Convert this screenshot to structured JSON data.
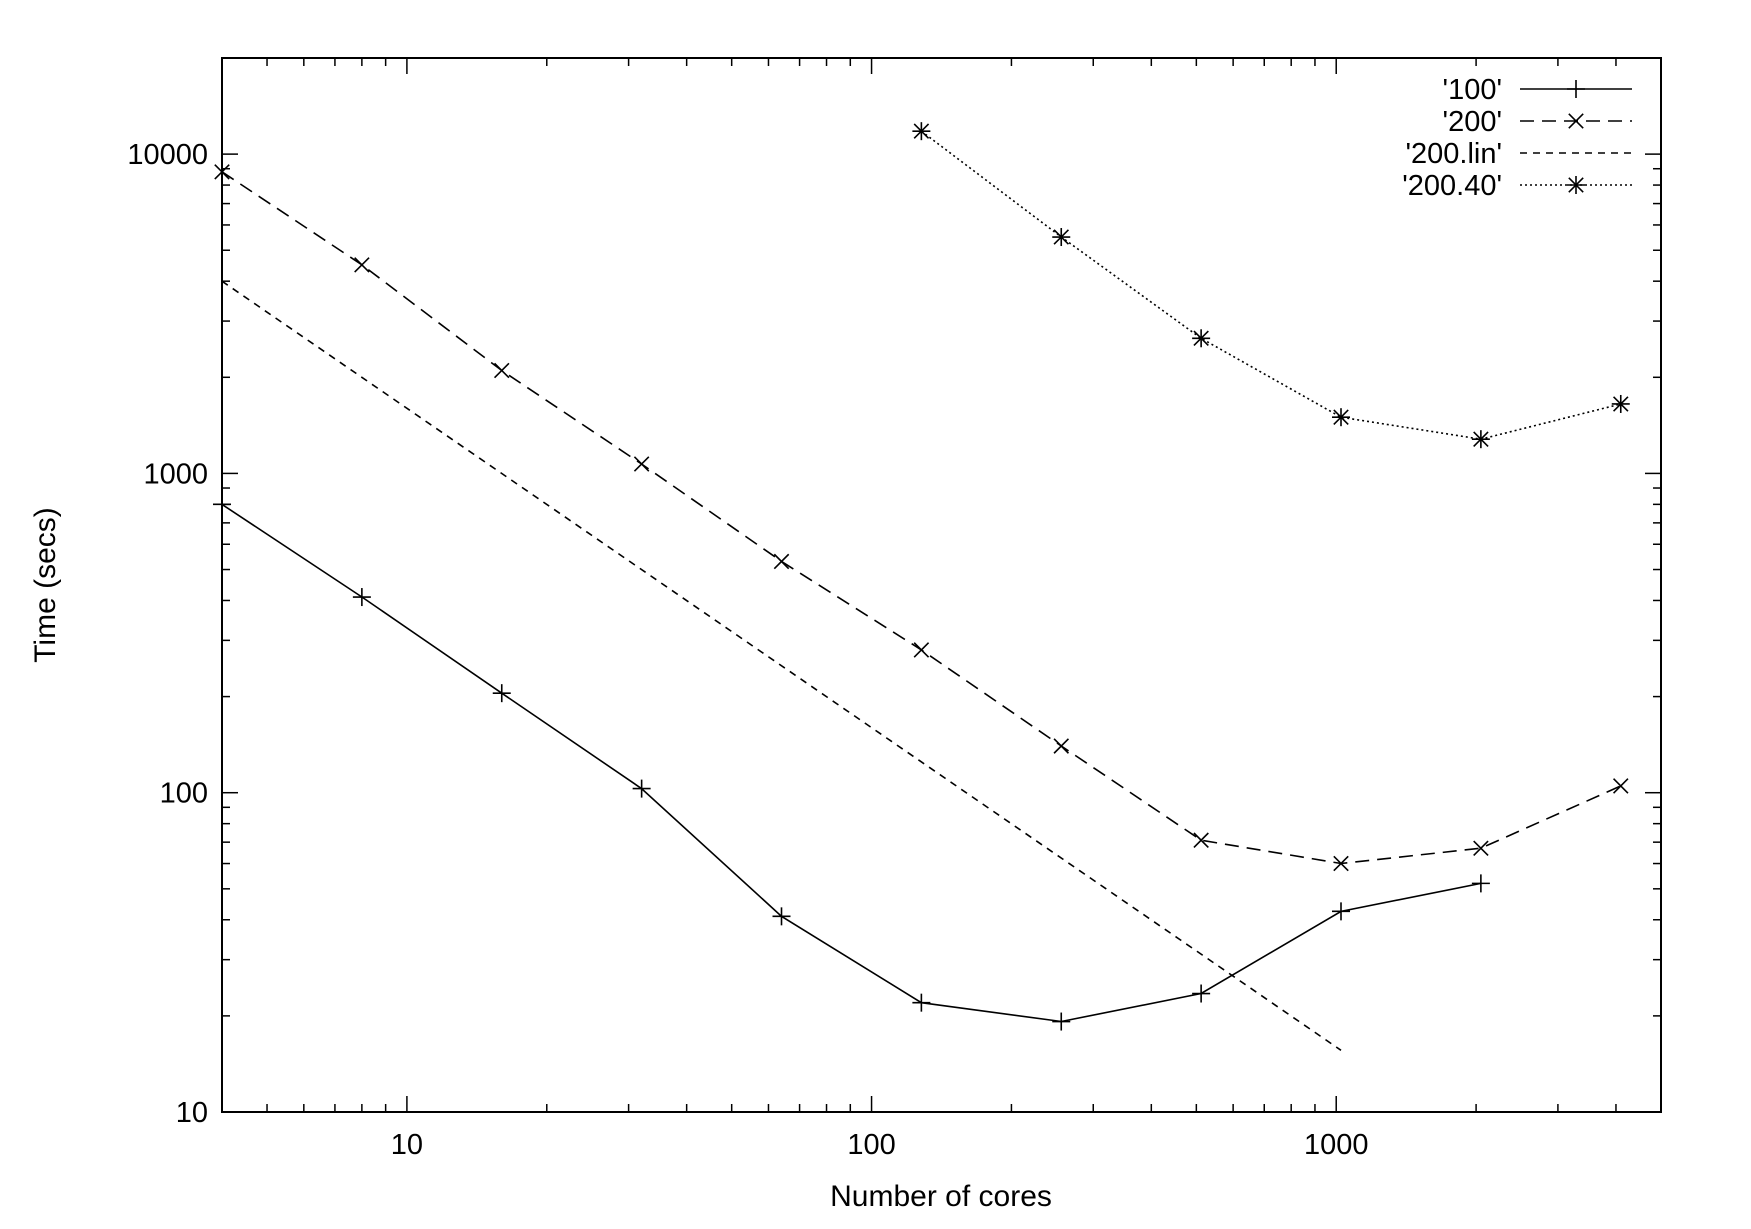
{
  "chart_data": {
    "type": "line",
    "title": "",
    "xlabel": "Number of cores",
    "ylabel": "Time (secs)",
    "x_scale": "log",
    "y_scale": "log",
    "xlim": [
      4,
      5000
    ],
    "ylim": [
      10,
      20000
    ],
    "x_ticks": [
      10,
      100,
      1000
    ],
    "x_tick_labels": [
      "10",
      "100",
      "1000"
    ],
    "y_ticks": [
      10,
      100,
      1000,
      10000
    ],
    "y_tick_labels": [
      "10",
      "100",
      "1000",
      "10000"
    ],
    "grid": false,
    "legend_position": "top-right",
    "series": [
      {
        "name": "'100'",
        "style": "solid",
        "marker": "plus",
        "x": [
          4,
          8,
          16,
          32,
          64,
          128,
          256,
          512,
          1024,
          2048
        ],
        "y": [
          800,
          410,
          205,
          103,
          41,
          22,
          19.2,
          23.5,
          42.5,
          52
        ]
      },
      {
        "name": "'200'",
        "style": "dashed",
        "marker": "cross",
        "x": [
          4,
          8,
          16,
          32,
          64,
          128,
          256,
          512,
          1024,
          2048,
          4096
        ],
        "y": [
          8800,
          4500,
          2100,
          1070,
          530,
          280,
          140,
          71,
          60,
          67,
          105
        ]
      },
      {
        "name": "'200.lin'",
        "style": "short-dashed",
        "marker": "none",
        "x": [
          4,
          1024
        ],
        "y": [
          4000,
          15.6
        ]
      },
      {
        "name": "'200.40'",
        "style": "dotted",
        "marker": "star",
        "x": [
          128,
          256,
          512,
          1024,
          2048,
          4096
        ],
        "y": [
          11800,
          5500,
          2650,
          1500,
          1280,
          1650
        ]
      }
    ]
  }
}
